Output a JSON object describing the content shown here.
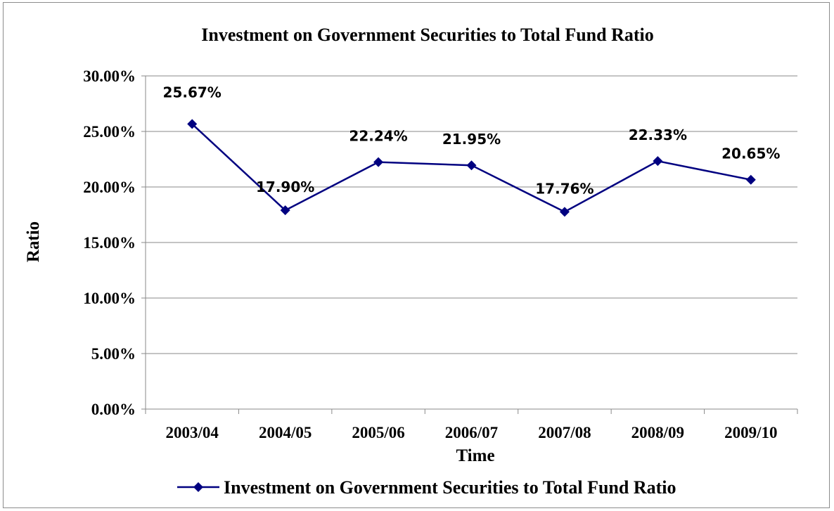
{
  "chart_data": {
    "type": "line",
    "title": "Investment on Government Securities to Total Fund Ratio",
    "xlabel": "Time",
    "ylabel": "Ratio",
    "categories": [
      "2003/04",
      "2004/05",
      "2005/06",
      "2006/07",
      "2007/08",
      "2008/09",
      "2009/10"
    ],
    "series": [
      {
        "name": "Investment on Government Securities to Total Fund Ratio",
        "values": [
          25.67,
          17.9,
          22.24,
          21.95,
          17.76,
          22.33,
          20.65
        ],
        "labels": [
          "25.67%",
          "17.90%",
          "22.24%",
          "21.95%",
          "17.76%",
          "22.33%",
          "20.65%"
        ],
        "color": "#000080"
      }
    ],
    "ylim": [
      0,
      30
    ],
    "yticks": [
      "0.00%",
      "5.00%",
      "10.00%",
      "15.00%",
      "20.00%",
      "25.00%",
      "30.00%"
    ],
    "grid": true,
    "legend": "bottom"
  }
}
